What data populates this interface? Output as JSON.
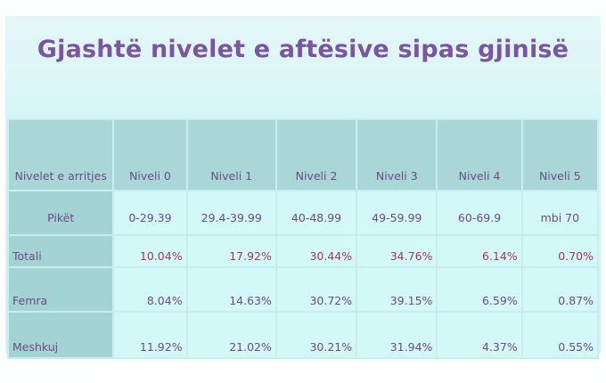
{
  "title": "Gjashtë nivelet e aftësive sipas gjinisë",
  "table": {
    "corner_label": "Nivelet e arritjes",
    "headers": [
      "Niveli 0",
      "Niveli 1",
      "Niveli 2",
      "Niveli 3",
      "Niveli 4",
      "Niveli 5"
    ],
    "rows": [
      {
        "label": "Pikët",
        "values": [
          "0-29.39",
          "29.4-39.99",
          "40-48.99",
          "49-59.99",
          "60-69.9",
          "mbi 70"
        ]
      },
      {
        "label": "Totali",
        "values": [
          "10.04%",
          "17.92%",
          "30.44%",
          "34.76%",
          "6.14%",
          "0.70%"
        ]
      },
      {
        "label": "Femra",
        "values": [
          "8.04%",
          "14.63%",
          "30.72%",
          "39.15%",
          "6.59%",
          "0.87%"
        ]
      },
      {
        "label": "Meshkuj",
        "values": [
          "11.92%",
          "21.02%",
          "30.21%",
          "31.94%",
          "4.37%",
          "0.55%"
        ]
      }
    ]
  },
  "colors": {
    "title": "#7b55a3",
    "text": "#6d4a8a",
    "totali_values": "#a3365c",
    "header_bg": "#a9d7d7",
    "body_bg": "#d3f8f8"
  }
}
